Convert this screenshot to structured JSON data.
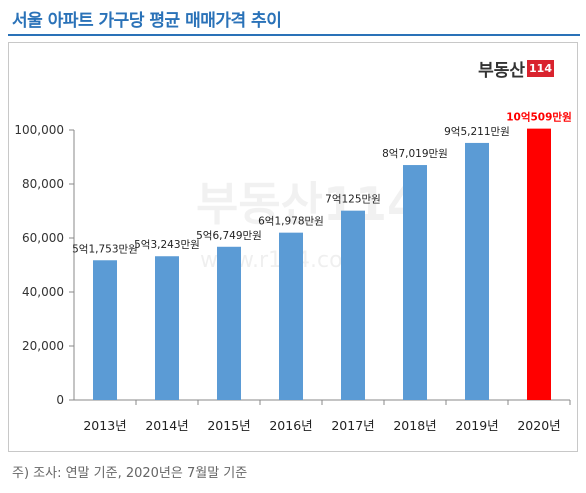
{
  "title": "서울 아파트 가구당 평균 매매가격 추이",
  "brand": {
    "text": "부동산",
    "box": "114"
  },
  "watermark": {
    "brand": "부동산114",
    "url": "www.r114.com"
  },
  "note": "주) 조사: 연말 기준, 2020년은 7월말 기준",
  "colors": {
    "bar": "#5b9bd5",
    "highlight_bar": "#ff0000",
    "highlight_label": "#ff0000",
    "title": "#2a72b8"
  },
  "chart_data": {
    "type": "bar",
    "categories": [
      "2013년",
      "2014년",
      "2015년",
      "2016년",
      "2017년",
      "2018년",
      "2019년",
      "2020년"
    ],
    "values": [
      51753,
      53243,
      56749,
      61978,
      70125,
      87019,
      95211,
      100509
    ],
    "data_labels": [
      "5억1,753만원",
      "5억3,243만원",
      "5억6,749만원",
      "6억1,978만원",
      "7억125만원",
      "8억7,019만원",
      "9억5,211만원",
      "10억509만원"
    ],
    "highlight_index": 7,
    "ylim": [
      0,
      100000
    ],
    "yticks": [
      0,
      20000,
      40000,
      60000,
      80000,
      100000
    ],
    "ytick_labels": [
      "0",
      "20,000",
      "40,000",
      "60,000",
      "80,000",
      "100,000"
    ],
    "grid": false,
    "legend": "none"
  }
}
